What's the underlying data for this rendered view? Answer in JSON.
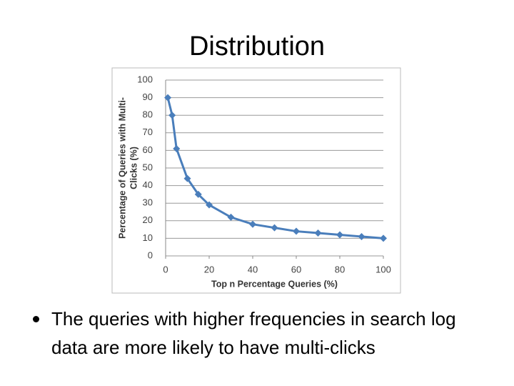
{
  "title": "Distribution",
  "chart_data": {
    "type": "line",
    "x_label": "Top n Percentage Queries (%)",
    "y_label": [
      "Percentage of Queries with Multi-",
      "Clicks (%)"
    ],
    "x": [
      1,
      3,
      5,
      10,
      15,
      20,
      30,
      40,
      50,
      60,
      70,
      80,
      90,
      100
    ],
    "series": [
      {
        "color": "#4a7ebb",
        "values": [
          90,
          80,
          61,
          44,
          35,
          29,
          22,
          18,
          16,
          14,
          13,
          12,
          11,
          10
        ]
      }
    ],
    "xlim": [
      0,
      100
    ],
    "xticks": [
      0,
      20,
      40,
      60,
      80,
      100
    ],
    "ylim": [
      0,
      100
    ],
    "yticks": [
      0,
      10,
      20,
      30,
      40,
      50,
      60,
      70,
      80,
      90,
      100
    ],
    "grid": true
  },
  "bullets": [
    "The queries with higher frequencies in search log data are more likely to have multi-clicks"
  ]
}
